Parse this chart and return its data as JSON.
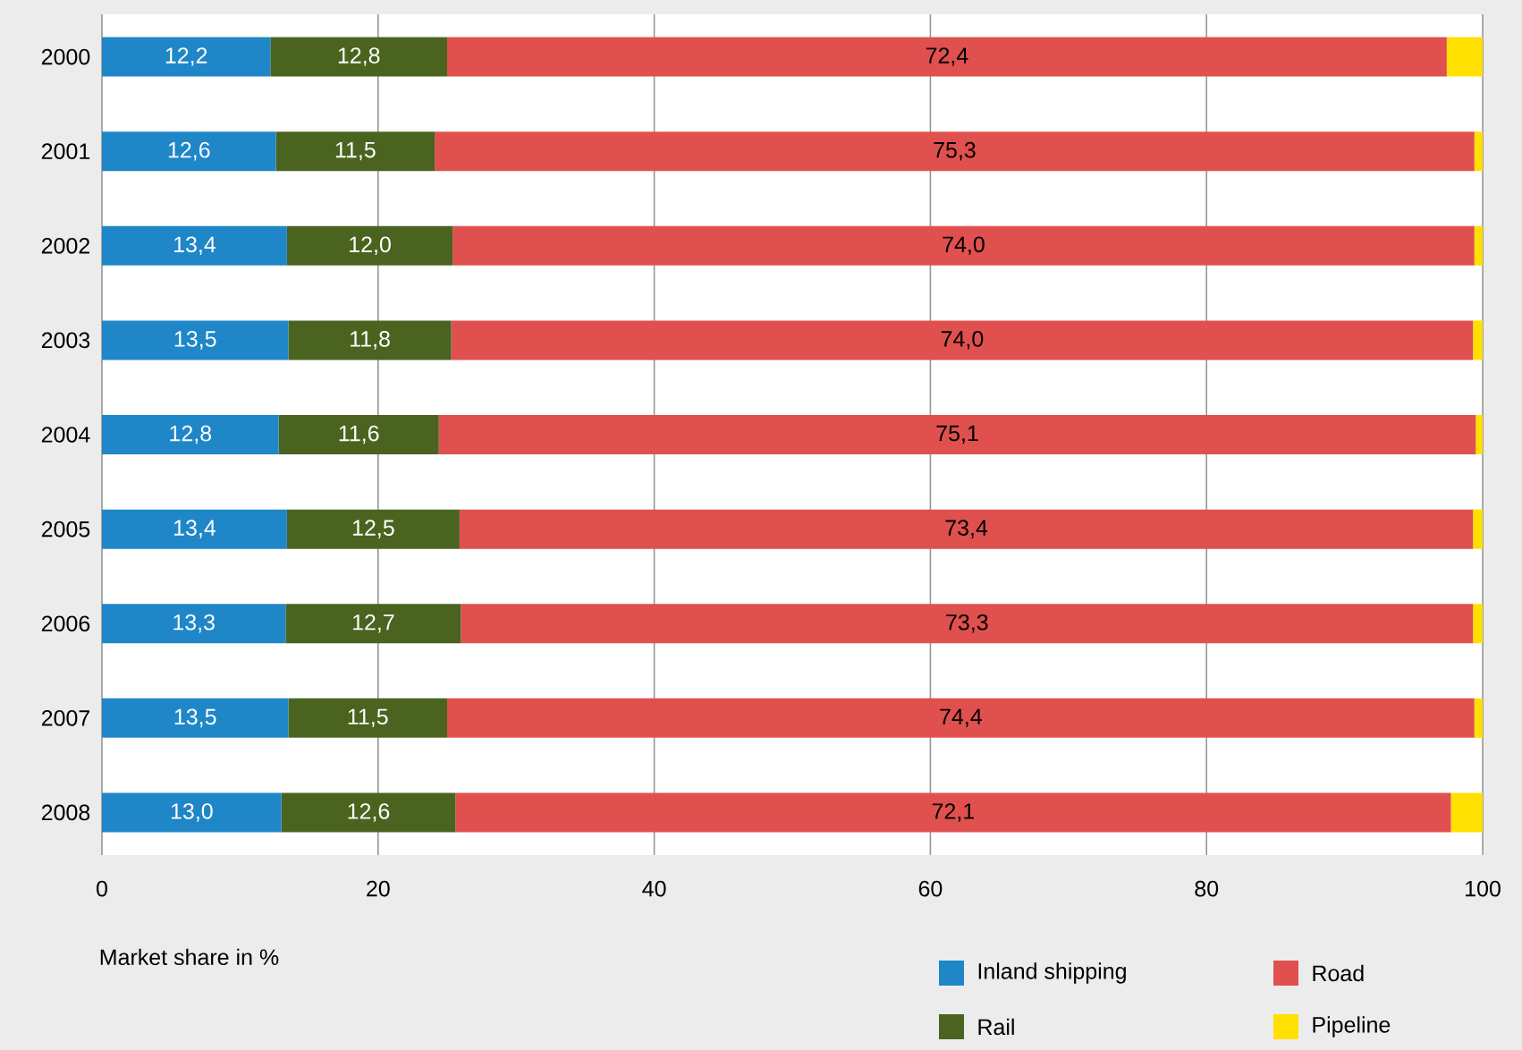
{
  "chart_data": {
    "type": "bar",
    "orientation": "horizontal",
    "stacked": true,
    "xlabel": "Market share in %",
    "categories": [
      "2000",
      "2001",
      "2002",
      "2003",
      "2004",
      "2005",
      "2006",
      "2007",
      "2008"
    ],
    "series": [
      {
        "name": "Inland shipping",
        "color": "#1f86c8",
        "values": [
          12.2,
          12.6,
          13.4,
          13.5,
          12.8,
          13.4,
          13.3,
          13.5,
          13.0
        ],
        "value_labels": [
          "12,2",
          "12,6",
          "13,4",
          "13,5",
          "12,8",
          "13,4",
          "13,3",
          "13,5",
          "13,0"
        ]
      },
      {
        "name": "Rail",
        "color": "#4a6420",
        "values": [
          12.8,
          11.5,
          12.0,
          11.8,
          11.6,
          12.5,
          12.7,
          11.5,
          12.6
        ],
        "value_labels": [
          "12,8",
          "11,5",
          "12,0",
          "11,8",
          "11,6",
          "12,5",
          "12,7",
          "11,5",
          "12,6"
        ]
      },
      {
        "name": "Road",
        "color": "#e0504e",
        "values": [
          72.4,
          75.3,
          74.0,
          74.0,
          75.1,
          73.4,
          73.3,
          74.4,
          72.1
        ],
        "value_labels": [
          "72,4",
          "75,3",
          "74,0",
          "74,0",
          "75,1",
          "73,4",
          "73,3",
          "74,4",
          "72,1"
        ]
      },
      {
        "name": "Pipeline",
        "color": "#ffe000",
        "values": [
          2.6,
          0.6,
          0.6,
          0.7,
          0.5,
          0.7,
          0.7,
          0.6,
          2.3
        ]
      }
    ],
    "xlim": [
      0,
      100
    ],
    "xticks": [
      0,
      20,
      40,
      60,
      80,
      100
    ],
    "grid": "x",
    "legend": "bottom right"
  }
}
